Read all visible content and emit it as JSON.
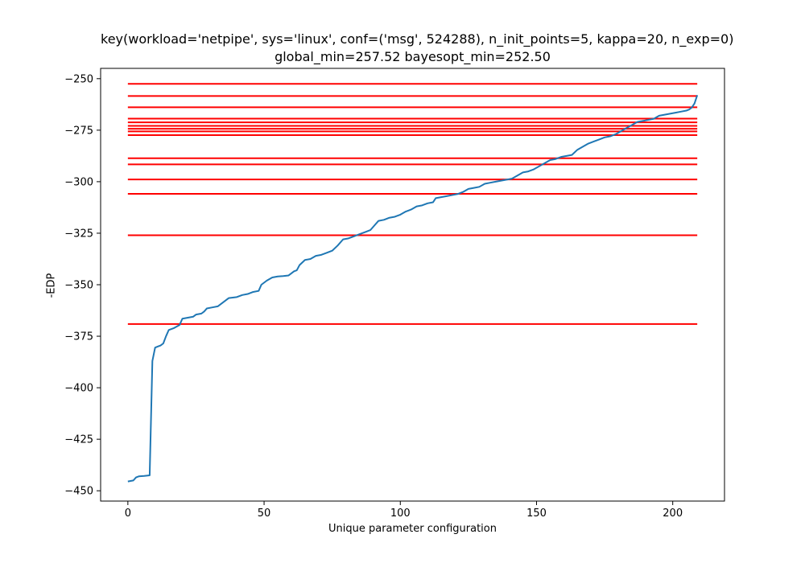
{
  "chart_data": {
    "type": "line",
    "title_line1": "key(workload='netpipe', sys='linux', conf=('msg', 524288), n_init_points=5, kappa=20, n_exp=0)",
    "title_line2": "global_min=257.52 bayesopt_min=252.50",
    "xlabel": "Unique parameter configuration",
    "ylabel": "-EDP",
    "xlim": [
      -10,
      219
    ],
    "ylim": [
      -455,
      -245
    ],
    "xticks": [
      0,
      50,
      100,
      150,
      200
    ],
    "yticks": [
      -250,
      -275,
      -300,
      -325,
      -350,
      -375,
      -400,
      -425,
      -450
    ],
    "grid": false,
    "line_color": "#1f77b4",
    "hline_color": "#ff0000",
    "hlines": {
      "xmin": 0,
      "xmax": 209,
      "values": [
        -252.5,
        -258.4,
        -263.9,
        -269.4,
        -271.2,
        -272.9,
        -274.3,
        -275.6,
        -277.4,
        -288.6,
        -291.6,
        -298.9,
        -305.9,
        -326.0,
        -369.1
      ]
    },
    "series": [
      {
        "points": [
          [
            0,
            -445.5
          ],
          [
            2,
            -445.0
          ],
          [
            3,
            -443.5
          ],
          [
            4,
            -443.0
          ],
          [
            6,
            -442.8
          ],
          [
            8,
            -442.5
          ],
          [
            9,
            -387.0
          ],
          [
            10,
            -380.5
          ],
          [
            11,
            -380.0
          ],
          [
            12,
            -379.5
          ],
          [
            13,
            -378.5
          ],
          [
            14,
            -375.0
          ],
          [
            15,
            -372.0
          ],
          [
            17,
            -371.0
          ],
          [
            19,
            -369.5
          ],
          [
            20,
            -366.5
          ],
          [
            22,
            -366.0
          ],
          [
            24,
            -365.5
          ],
          [
            25,
            -364.5
          ],
          [
            27,
            -364.0
          ],
          [
            28,
            -363.0
          ],
          [
            29,
            -361.5
          ],
          [
            31,
            -361.0
          ],
          [
            33,
            -360.5
          ],
          [
            35,
            -358.5
          ],
          [
            37,
            -356.5
          ],
          [
            40,
            -356.0
          ],
          [
            42,
            -355.0
          ],
          [
            44,
            -354.5
          ],
          [
            46,
            -353.5
          ],
          [
            48,
            -353.0
          ],
          [
            49,
            -350.0
          ],
          [
            51,
            -348.0
          ],
          [
            53,
            -346.5
          ],
          [
            55,
            -346.0
          ],
          [
            57,
            -345.8
          ],
          [
            59,
            -345.5
          ],
          [
            61,
            -343.5
          ],
          [
            62,
            -343.0
          ],
          [
            63,
            -340.5
          ],
          [
            65,
            -338.0
          ],
          [
            67,
            -337.5
          ],
          [
            69,
            -336.0
          ],
          [
            71,
            -335.5
          ],
          [
            73,
            -334.5
          ],
          [
            75,
            -333.5
          ],
          [
            77,
            -331.0
          ],
          [
            79,
            -328.0
          ],
          [
            81,
            -327.5
          ],
          [
            83,
            -326.5
          ],
          [
            85,
            -325.5
          ],
          [
            87,
            -324.5
          ],
          [
            89,
            -323.5
          ],
          [
            90,
            -322.0
          ],
          [
            92,
            -319.0
          ],
          [
            94,
            -318.5
          ],
          [
            96,
            -317.5
          ],
          [
            98,
            -317.0
          ],
          [
            100,
            -316.0
          ],
          [
            102,
            -314.5
          ],
          [
            104,
            -313.5
          ],
          [
            106,
            -312.0
          ],
          [
            108,
            -311.5
          ],
          [
            110,
            -310.5
          ],
          [
            112,
            -310.0
          ],
          [
            113,
            -308.0
          ],
          [
            115,
            -307.5
          ],
          [
            117,
            -307.0
          ],
          [
            119,
            -306.5
          ],
          [
            121,
            -306.0
          ],
          [
            123,
            -305.0
          ],
          [
            125,
            -303.5
          ],
          [
            127,
            -303.0
          ],
          [
            129,
            -302.5
          ],
          [
            131,
            -301.0
          ],
          [
            133,
            -300.5
          ],
          [
            135,
            -300.0
          ],
          [
            137,
            -299.5
          ],
          [
            139,
            -299.0
          ],
          [
            141,
            -298.5
          ],
          [
            143,
            -297.0
          ],
          [
            145,
            -295.5
          ],
          [
            147,
            -295.0
          ],
          [
            149,
            -294.0
          ],
          [
            151,
            -292.5
          ],
          [
            153,
            -291.0
          ],
          [
            155,
            -289.5
          ],
          [
            157,
            -289.0
          ],
          [
            159,
            -288.0
          ],
          [
            161,
            -287.5
          ],
          [
            163,
            -287.0
          ],
          [
            165,
            -284.5
          ],
          [
            167,
            -283.0
          ],
          [
            169,
            -281.5
          ],
          [
            171,
            -280.5
          ],
          [
            173,
            -279.5
          ],
          [
            175,
            -278.5
          ],
          [
            177,
            -278.0
          ],
          [
            179,
            -277.0
          ],
          [
            181,
            -275.5
          ],
          [
            183,
            -274.0
          ],
          [
            185,
            -272.5
          ],
          [
            187,
            -271.0
          ],
          [
            189,
            -270.5
          ],
          [
            191,
            -270.0
          ],
          [
            193,
            -269.5
          ],
          [
            195,
            -268.0
          ],
          [
            197,
            -267.5
          ],
          [
            199,
            -267.0
          ],
          [
            201,
            -266.5
          ],
          [
            203,
            -266.0
          ],
          [
            205,
            -265.5
          ],
          [
            206,
            -265.0
          ],
          [
            207,
            -264.0
          ],
          [
            208,
            -262.0
          ],
          [
            209,
            -258.0
          ]
        ]
      }
    ]
  }
}
